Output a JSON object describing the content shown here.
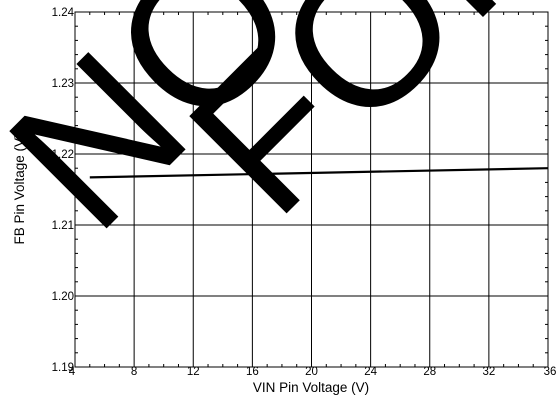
{
  "chart_data": {
    "type": "line",
    "title": "",
    "xlabel": "VIN Pin Voltage (V)",
    "ylabel": "FB Pin Voltage (V)",
    "xlim": [
      4,
      36
    ],
    "ylim": [
      1.19,
      1.24
    ],
    "xticks": [
      4,
      8,
      12,
      16,
      20,
      24,
      28,
      32,
      36
    ],
    "yticks": [
      1.19,
      1.2,
      1.21,
      1.22,
      1.23,
      1.24
    ],
    "x_tick_labels": [
      "4",
      "8",
      "12",
      "16",
      "20",
      "24",
      "28",
      "32",
      "36"
    ],
    "y_tick_labels": [
      "1.19",
      "1.20",
      "1.21",
      "1.22",
      "1.23",
      "1.24"
    ],
    "grid": true,
    "legend": "none",
    "series": [
      {
        "x": [
          5,
          36
        ],
        "y": [
          1.2167,
          1.218
        ],
        "color": "#000000"
      }
    ]
  },
  "watermark": {
    "left_text": "NOT",
    "right_text": "FOR",
    "color": "#000000"
  }
}
